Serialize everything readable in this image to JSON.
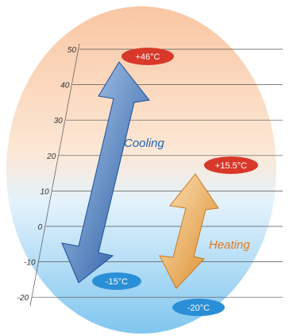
{
  "scale": {
    "ticks": [
      "50",
      "40",
      "30",
      "20",
      "10",
      "0",
      "-10",
      "-20"
    ],
    "colors": {
      "line": "#555555",
      "tick_text": "#333333"
    }
  },
  "cooling": {
    "label": "Cooling",
    "max_label": "+46°C",
    "min_label": "-15°C",
    "max_value": 46,
    "min_value": -15,
    "colors": {
      "arrow_dark": "#1a4f9c",
      "arrow_light": "#bcd6f2",
      "label": "#1f63b5",
      "min_badge": "#2a8fd6",
      "max_badge": "#d8382a"
    }
  },
  "heating": {
    "label": "Heating",
    "max_label": "+15.5°C",
    "min_label": "-20°C",
    "max_value": 15.5,
    "min_value": -20,
    "colors": {
      "arrow_dark": "#d98a2a",
      "arrow_light": "#fde3b8",
      "label": "#e07a1e",
      "min_badge": "#2a8fd6",
      "max_badge": "#d8382a"
    }
  },
  "background": {
    "top": "#f9c6a3",
    "bottom": "#7fc6ef"
  }
}
